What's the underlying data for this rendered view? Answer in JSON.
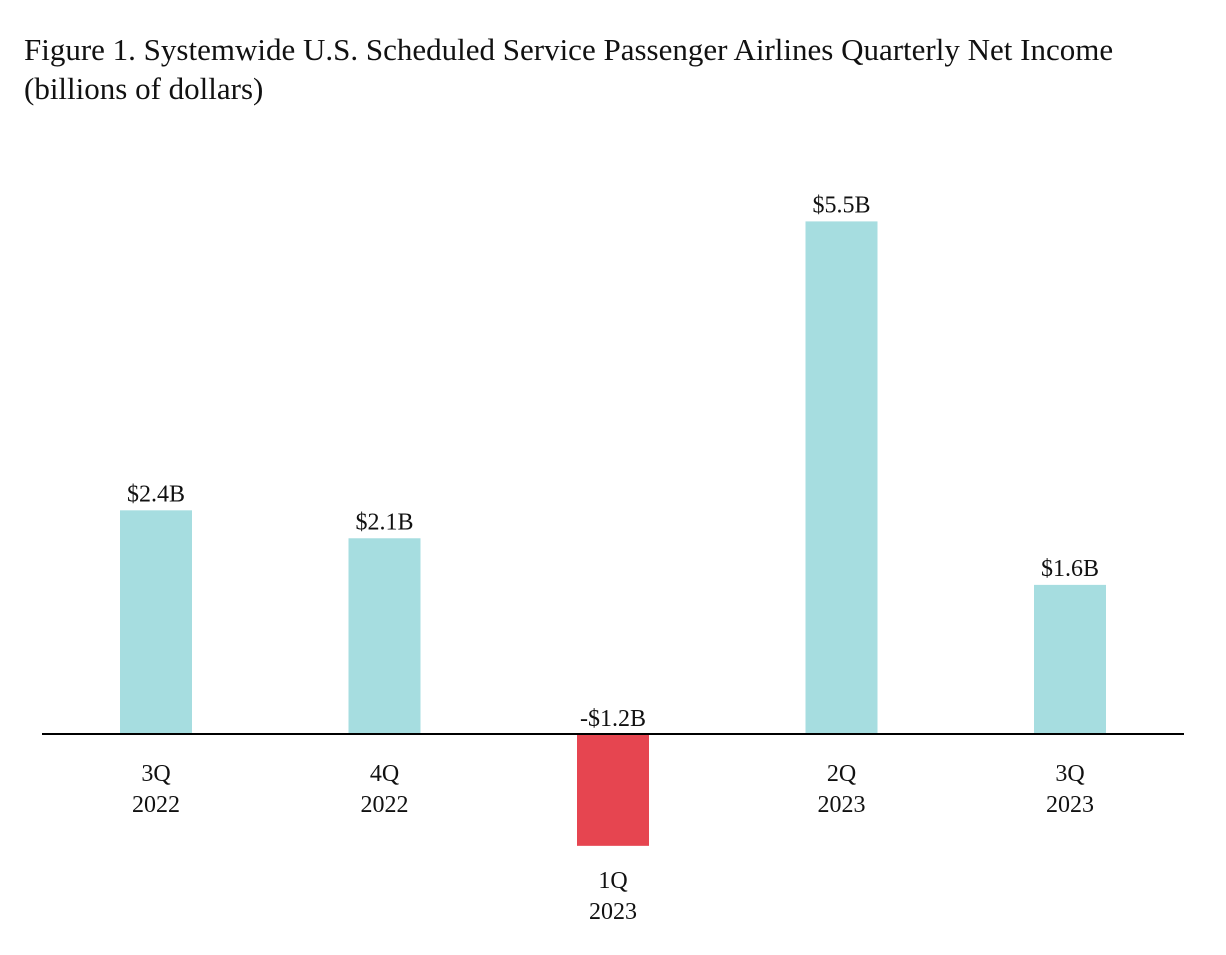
{
  "title_line1": "Figure 1. Systemwide U.S. Scheduled Service Passenger Airlines Quarterly Net Income",
  "title_line2": "(billions of dollars)",
  "chart_data": {
    "type": "bar",
    "title": "Figure 1. Systemwide U.S. Scheduled Service Passenger Airlines Quarterly Net Income (billions of dollars)",
    "categories": [
      [
        "3Q",
        "2022"
      ],
      [
        "4Q",
        "2022"
      ],
      [
        "1Q",
        "2023"
      ],
      [
        "2Q",
        "2023"
      ],
      [
        "3Q",
        "2023"
      ]
    ],
    "values": [
      2.4,
      2.1,
      -1.2,
      5.5,
      1.6
    ],
    "data_labels": [
      "$2.4B",
      "$2.1B",
      "-$1.2B",
      "$5.5B",
      "$1.6B"
    ],
    "xlabel": "",
    "ylabel": "",
    "y_axis_shown": false,
    "grid": false,
    "legend": "none",
    "colors": {
      "positive": "#a6dde0",
      "negative": "#e64550",
      "baseline": "#000000"
    }
  }
}
